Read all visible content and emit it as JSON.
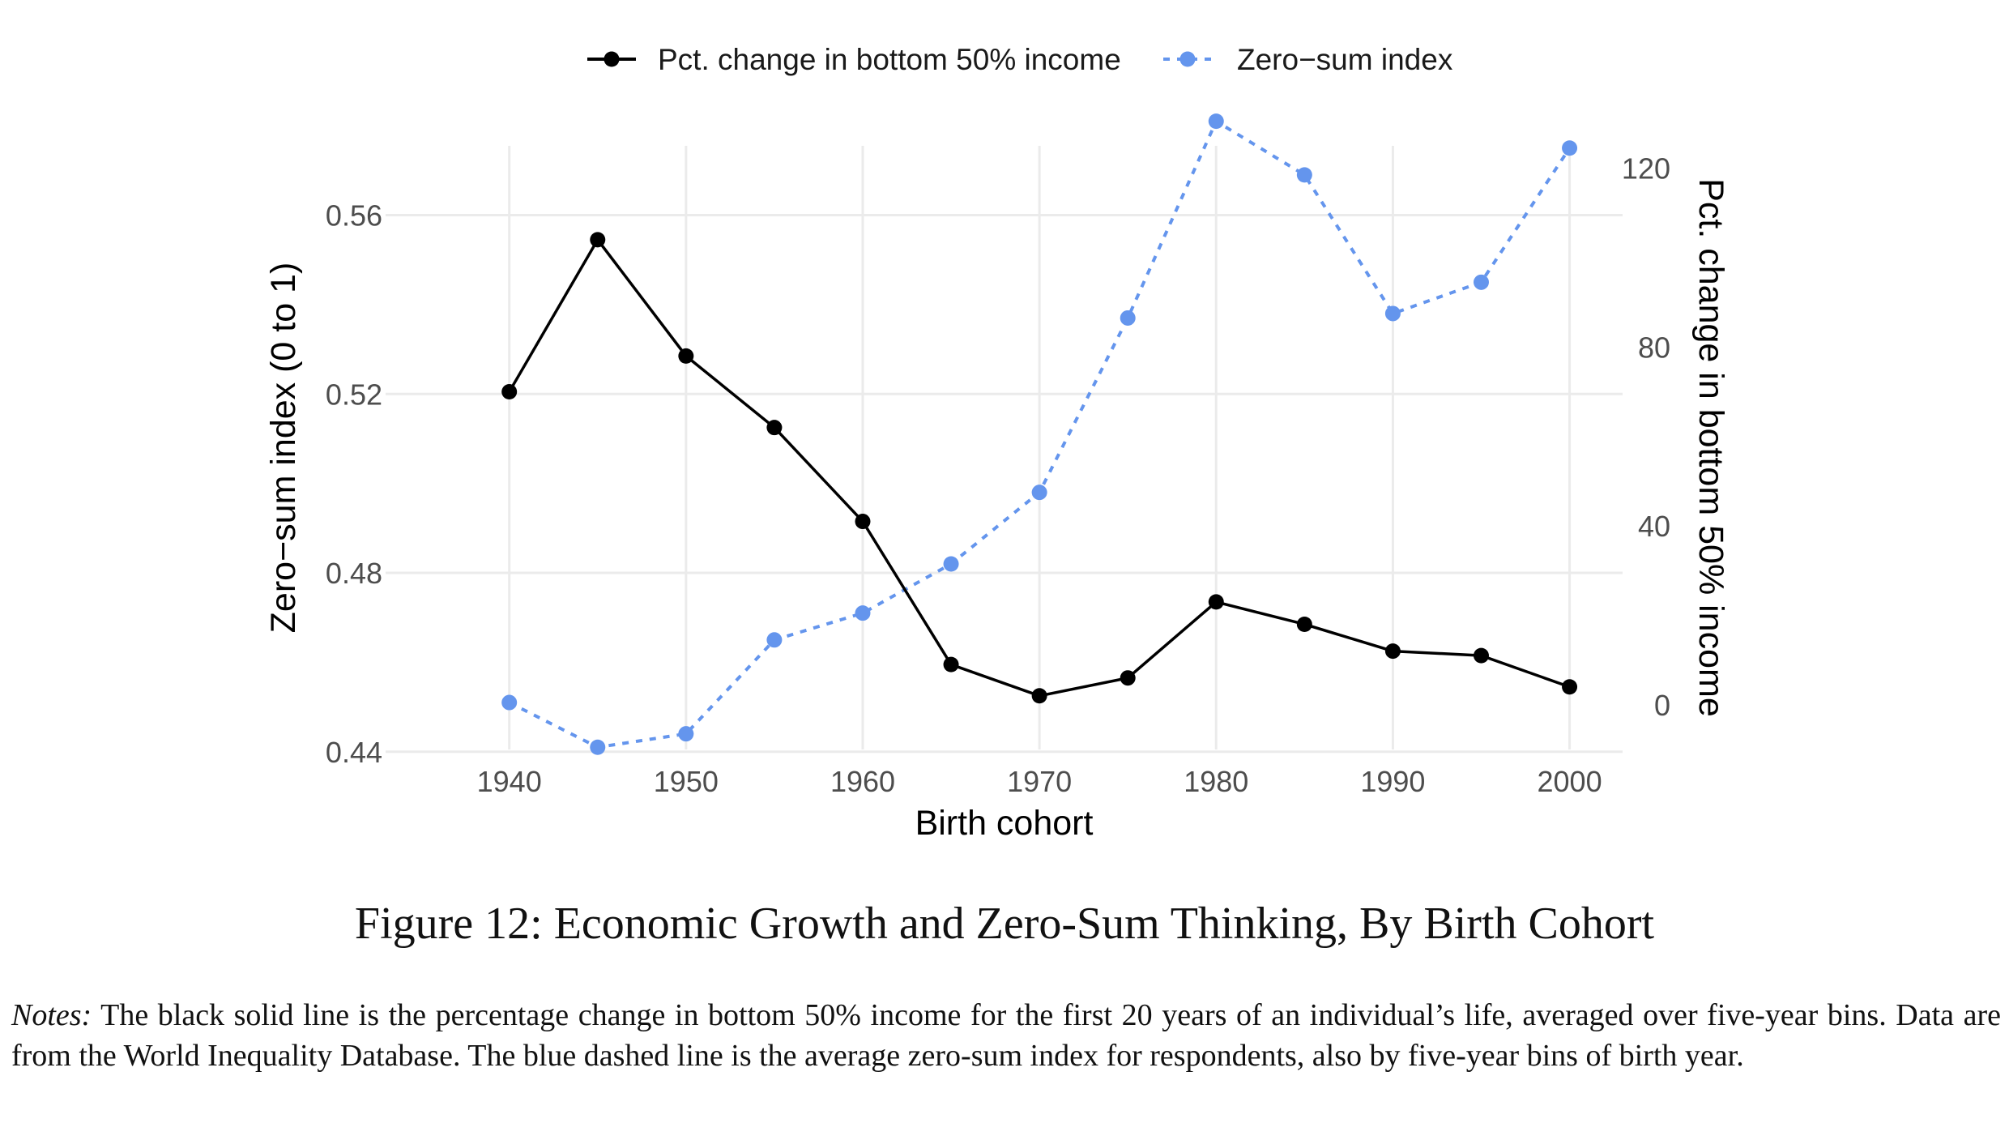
{
  "chart_data": {
    "type": "line",
    "x": [
      1940,
      1945,
      1950,
      1955,
      1960,
      1965,
      1970,
      1975,
      1980,
      1985,
      1990,
      1995,
      2000
    ],
    "xlabel": "Birth cohort",
    "xlim": [
      1933,
      2003
    ],
    "xticks": [
      1940,
      1950,
      1960,
      1970,
      1980,
      1990,
      2000
    ],
    "y_left": {
      "label": "Zero−sum index (0 to 1)",
      "lim": [
        0.4405,
        0.5755
      ],
      "ticks": [
        0.44,
        0.48,
        0.52,
        0.56
      ],
      "tick_labels": [
        "0.44",
        "0.48",
        "0.52",
        "0.56"
      ]
    },
    "y_right": {
      "label": "Pct. change in bottom 50% income",
      "lim": [
        -10,
        125
      ],
      "ticks": [
        0,
        40,
        80,
        120
      ],
      "tick_labels": [
        "0",
        "40",
        "80",
        "120"
      ]
    },
    "series": [
      {
        "name": "Pct. change in bottom 50% income",
        "axis": "right",
        "color": "#000000",
        "style": "solid",
        "values": [
          70,
          104,
          78,
          62,
          41,
          9,
          2,
          6,
          23,
          18,
          12,
          11,
          4
        ]
      },
      {
        "name": "Zero−sum index",
        "axis": "left",
        "color": "#6495ED",
        "style": "dashed",
        "values": [
          0.451,
          0.441,
          0.444,
          0.465,
          0.471,
          0.482,
          0.498,
          0.537,
          0.581,
          0.569,
          0.538,
          0.545,
          0.575
        ]
      }
    ],
    "grid": true,
    "legend_position": "top"
  },
  "caption": "Figure 12: Economic Growth and Zero-Sum Thinking, By Birth Cohort",
  "notes": {
    "lead": "Notes:",
    "text": " The black solid line is the percentage change in bottom 50% income for the first 20 years of an individual’s life, averaged over five-year bins. Data are from the World Inequality Database. The blue dashed line is the average zero-sum index for respondents, also by five-year bins of birth year."
  }
}
